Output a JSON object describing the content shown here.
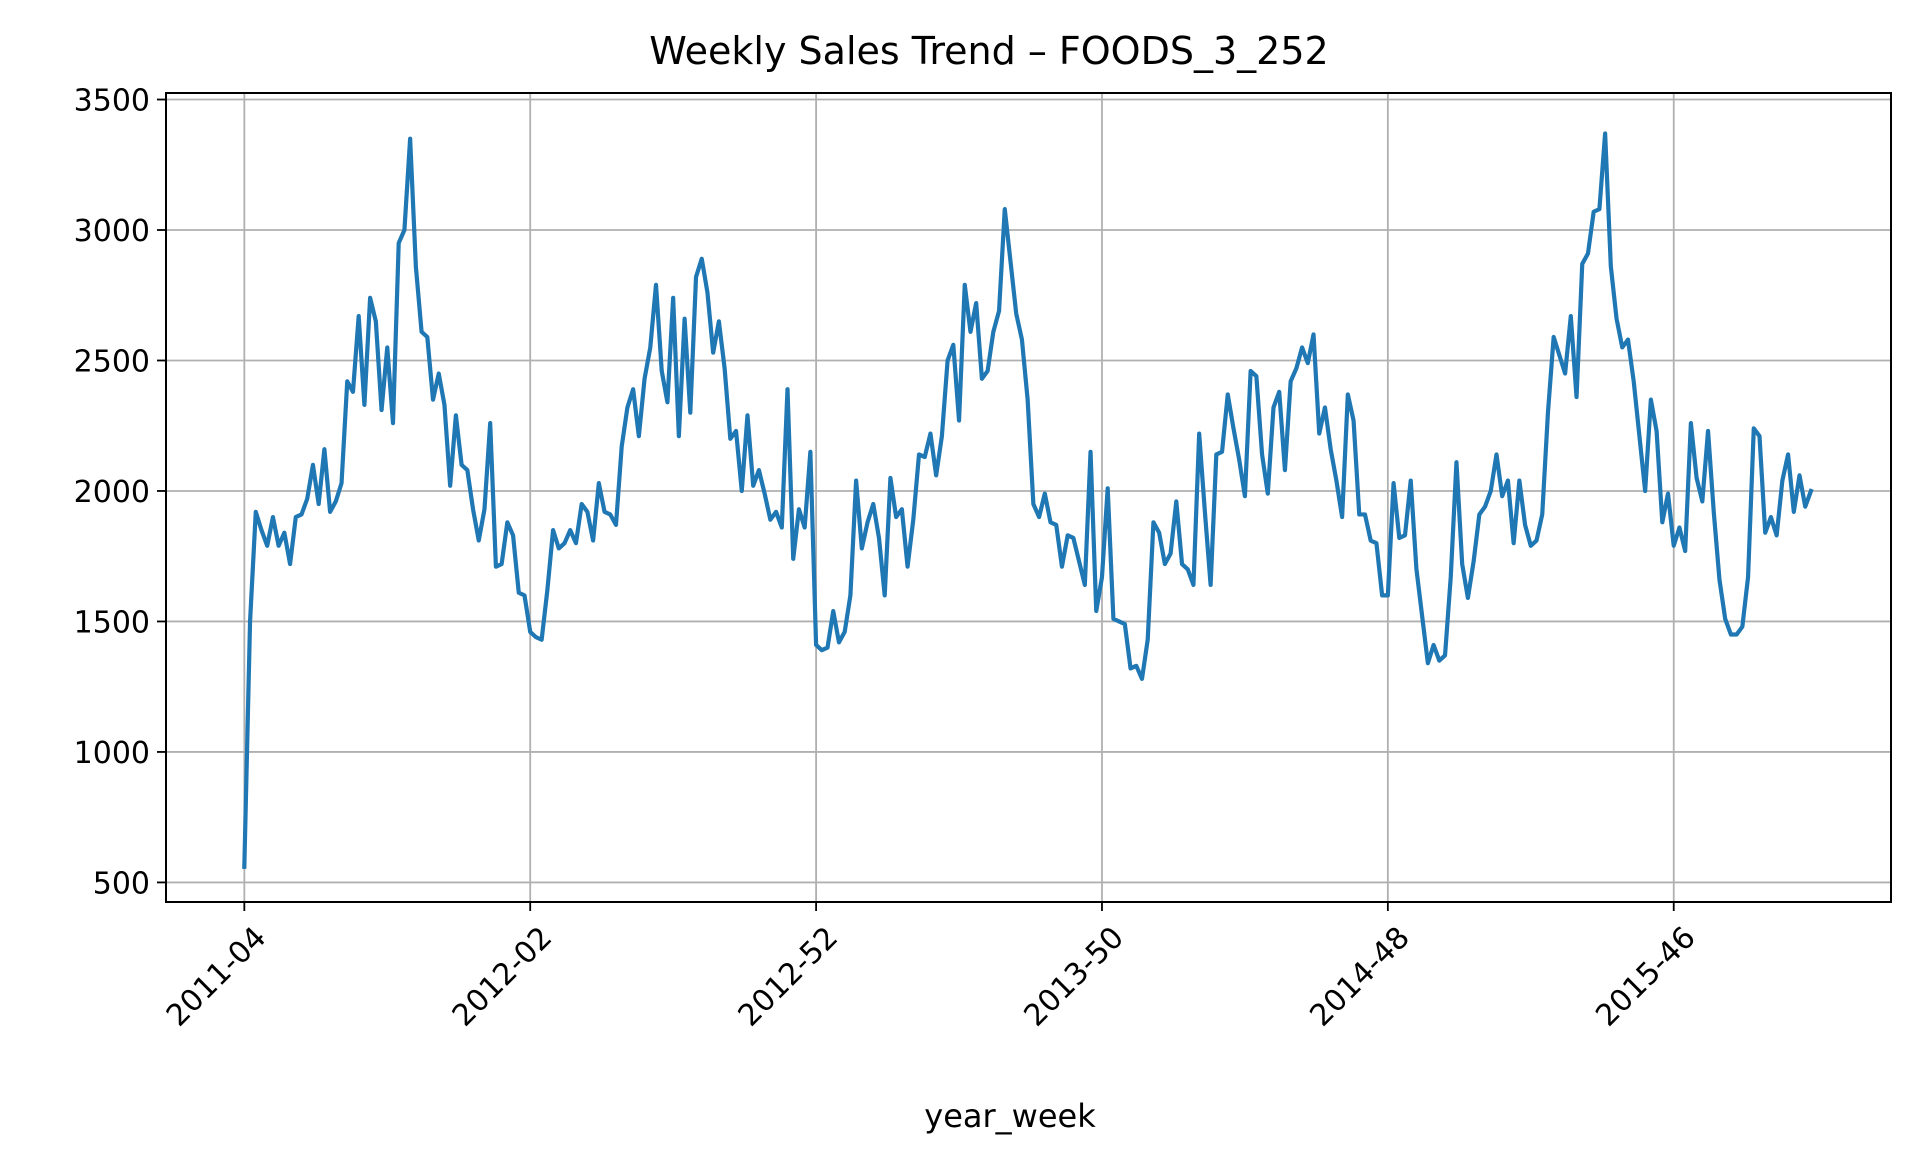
{
  "chart_data": {
    "type": "line",
    "title": "Weekly Sales Trend – FOODS_3_252",
    "xlabel": "year_week",
    "ylabel": "",
    "ylim": [
      425,
      3525
    ],
    "grid": true,
    "yticks": [
      500,
      1000,
      1500,
      2000,
      2500,
      3000,
      3500
    ],
    "xticks": [
      {
        "label": "2011-04",
        "index": 0
      },
      {
        "label": "2012-02",
        "index": 50
      },
      {
        "label": "2012-52",
        "index": 100
      },
      {
        "label": "2013-50",
        "index": 150
      },
      {
        "label": "2014-48",
        "index": 200
      },
      {
        "label": "2015-46",
        "index": 250
      }
    ],
    "series": [
      {
        "color": "#1f77b4",
        "values": [
          560,
          1500,
          1920,
          1850,
          1790,
          1900,
          1790,
          1840,
          1720,
          1900,
          1910,
          1970,
          2100,
          1950,
          2160,
          1920,
          1960,
          2030,
          2420,
          2380,
          2670,
          2330,
          2740,
          2650,
          2310,
          2550,
          2260,
          2950,
          3000,
          3350,
          2860,
          2610,
          2590,
          2350,
          2450,
          2330,
          2020,
          2290,
          2100,
          2080,
          1930,
          1810,
          1930,
          2260,
          1710,
          1720,
          1880,
          1830,
          1610,
          1600,
          1460,
          1440,
          1430,
          1620,
          1850,
          1780,
          1800,
          1850,
          1800,
          1950,
          1920,
          1810,
          2030,
          1920,
          1910,
          1870,
          2170,
          2320,
          2390,
          2210,
          2430,
          2550,
          2790,
          2460,
          2340,
          2740,
          2210,
          2660,
          2300,
          2820,
          2890,
          2760,
          2530,
          2650,
          2470,
          2200,
          2230,
          2000,
          2290,
          2020,
          2080,
          1990,
          1890,
          1920,
          1860,
          2390,
          1740,
          1930,
          1860,
          2150,
          1410,
          1390,
          1400,
          1540,
          1420,
          1460,
          1600,
          2040,
          1780,
          1880,
          1950,
          1820,
          1600,
          2050,
          1900,
          1930,
          1710,
          1890,
          2140,
          2130,
          2220,
          2060,
          2210,
          2500,
          2560,
          2270,
          2790,
          2610,
          2720,
          2430,
          2460,
          2610,
          2690,
          3080,
          2880,
          2680,
          2580,
          2350,
          1950,
          1900,
          1990,
          1880,
          1870,
          1710,
          1830,
          1820,
          1730,
          1640,
          2150,
          1540,
          1670,
          2010,
          1510,
          1500,
          1490,
          1320,
          1330,
          1280,
          1430,
          1880,
          1840,
          1720,
          1760,
          1960,
          1720,
          1700,
          1640,
          2220,
          1920,
          1640,
          2140,
          2150,
          2370,
          2240,
          2120,
          1980,
          2460,
          2440,
          2140,
          1990,
          2320,
          2380,
          2080,
          2420,
          2470,
          2550,
          2490,
          2600,
          2220,
          2320,
          2160,
          2040,
          1900,
          2370,
          2270,
          1910,
          1910,
          1810,
          1800,
          1600,
          1600,
          2030,
          1820,
          1830,
          2040,
          1700,
          1520,
          1340,
          1410,
          1350,
          1370,
          1670,
          2110,
          1720,
          1590,
          1730,
          1910,
          1940,
          2000,
          2140,
          1980,
          2040,
          1800,
          2040,
          1870,
          1790,
          1810,
          1910,
          2300,
          2590,
          2520,
          2450,
          2670,
          2360,
          2870,
          2910,
          3070,
          3080,
          3370,
          2860,
          2660,
          2550,
          2580,
          2420,
          2210,
          2000,
          2350,
          2230,
          1880,
          1990,
          1790,
          1860,
          1770,
          2260,
          2050,
          1960,
          2230,
          1920,
          1660,
          1510,
          1450,
          1450,
          1480,
          1670,
          2240,
          2210,
          1840,
          1900,
          1830,
          2040,
          2140,
          1920,
          2060,
          1940,
          2000
        ]
      }
    ]
  }
}
